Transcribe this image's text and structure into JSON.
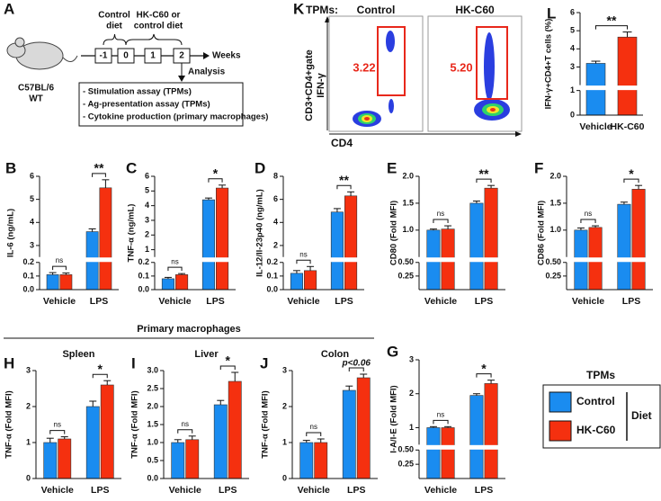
{
  "panel_a": {
    "label": "A",
    "mouse_lines": [
      "C57BL/6",
      "WT"
    ],
    "control_diet_lines": [
      "Control",
      "diet"
    ],
    "hkc60_lines": [
      "HK-C60 or",
      "control diet"
    ],
    "timepoints": [
      "-1",
      "0",
      "1",
      "2"
    ],
    "axis_label": "Weeks",
    "analysis": "Analysis",
    "assays": [
      "- Stimulation assay (TPMs)",
      "- Ag-presentation assay (TPMs)",
      "- Cytokine production (primary macrophages)"
    ]
  },
  "panel_k": {
    "label": "K",
    "row_label": "TPMs:",
    "columns": [
      "Control",
      "HK-C60"
    ],
    "gate_values": [
      "3.22",
      "5.20"
    ],
    "ylabel_lines": [
      "CD3+CD4+gate",
      "IFN-γ"
    ],
    "xlabel": "CD4"
  },
  "group_header": "Primary macrophages",
  "legend": {
    "title": "TPMs",
    "group_label": "Diet"
  },
  "chart_data": [
    {
      "type": "bar",
      "label": "B",
      "ylabel": "IL-6 (ng/mL)",
      "categories": [
        "Vehicle",
        "LPS"
      ],
      "series": [
        {
          "name": "Control",
          "color": "#1a8cf0",
          "values": [
            0.11,
            3.6
          ],
          "errors": [
            0.015,
            0.12
          ]
        },
        {
          "name": "HK-C60",
          "color": "#f5300f",
          "values": [
            0.11,
            5.5
          ],
          "errors": [
            0.012,
            0.35
          ]
        }
      ],
      "ylim": [
        0,
        6
      ],
      "axis_break": [
        0.2,
        2.5
      ],
      "yticks": [
        {
          "value": 0,
          "label": "0.0"
        },
        0.1,
        0.2,
        3,
        4,
        5,
        6
      ],
      "significance": [
        "ns",
        "**"
      ]
    },
    {
      "type": "bar",
      "label": "C",
      "ylabel": "TNF-α (ng/mL)",
      "categories": [
        "Vehicle",
        "LPS"
      ],
      "series": [
        {
          "name": "Control",
          "color": "#1a8cf0",
          "values": [
            0.08,
            4.4
          ],
          "errors": [
            0.01,
            0.12
          ]
        },
        {
          "name": "HK-C60",
          "color": "#f5300f",
          "values": [
            0.11,
            5.2
          ],
          "errors": [
            0.008,
            0.2
          ]
        }
      ],
      "ylim": [
        0,
        6
      ],
      "axis_break": [
        0.2,
        0.5
      ],
      "yticks": [
        {
          "value": 0,
          "label": "0.0"
        },
        0.1,
        0.2,
        1,
        2,
        3,
        4,
        5,
        6
      ],
      "significance": [
        "ns",
        "*"
      ]
    },
    {
      "type": "bar",
      "label": "D",
      "ylabel": "IL-12/Il-23p40 (ng/mL)",
      "categories": [
        "Vehicle",
        "LPS"
      ],
      "series": [
        {
          "name": "Control",
          "color": "#1a8cf0",
          "values": [
            0.12,
            4.9
          ],
          "errors": [
            0.02,
            0.3
          ]
        },
        {
          "name": "HK-C60",
          "color": "#f5300f",
          "values": [
            0.14,
            6.3
          ],
          "errors": [
            0.03,
            0.35
          ]
        }
      ],
      "ylim": [
        0,
        8
      ],
      "axis_break": [
        0.2,
        1
      ],
      "yticks": [
        {
          "value": 0,
          "label": "0.0"
        },
        0.1,
        0.2,
        2,
        4,
        6,
        8
      ],
      "significance": [
        "ns",
        "**"
      ]
    },
    {
      "type": "bar",
      "label": "E",
      "ylabel": "CD80 (Fold MFI)",
      "categories": [
        "Vehicle",
        "LPS"
      ],
      "series": [
        {
          "name": "Control",
          "color": "#1a8cf0",
          "values": [
            1.0,
            1.5
          ],
          "errors": [
            0.02,
            0.04
          ]
        },
        {
          "name": "HK-C60",
          "color": "#f5300f",
          "values": [
            1.02,
            1.78
          ],
          "errors": [
            0.06,
            0.05
          ]
        }
      ],
      "ylim": [
        0,
        2
      ],
      "axis_break": [
        0.5,
        0.5
      ],
      "yticks": [
        0.25,
        {
          "value": 0.5,
          "label": "0.50"
        },
        {
          "value": 1,
          "label": "1.0"
        },
        1.5,
        {
          "value": 2,
          "label": "2.0"
        }
      ],
      "significance": [
        "ns",
        "**"
      ]
    },
    {
      "type": "bar",
      "label": "F",
      "ylabel": "CD86 (Fold MFI)",
      "categories": [
        "Vehicle",
        "LPS"
      ],
      "series": [
        {
          "name": "Control",
          "color": "#1a8cf0",
          "values": [
            1.0,
            1.48
          ],
          "errors": [
            0.04,
            0.04
          ]
        },
        {
          "name": "HK-C60",
          "color": "#f5300f",
          "values": [
            1.05,
            1.76
          ],
          "errors": [
            0.03,
            0.07
          ]
        }
      ],
      "ylim": [
        0,
        2
      ],
      "axis_break": [
        0.5,
        0.5
      ],
      "yticks": [
        0.25,
        {
          "value": 0.5,
          "label": "0.50"
        },
        {
          "value": 1,
          "label": "1.0"
        },
        1.5,
        {
          "value": 2,
          "label": "2.0"
        }
      ],
      "significance": [
        "ns",
        "*"
      ]
    },
    {
      "type": "bar",
      "label": "H",
      "title": "Spleen",
      "ylabel": "TNF-α (Fold MFI)",
      "categories": [
        "Vehicle",
        "LPS"
      ],
      "series": [
        {
          "name": "Control",
          "color": "#1a8cf0",
          "values": [
            1.0,
            2.0
          ],
          "errors": [
            0.12,
            0.15
          ]
        },
        {
          "name": "HK-C60",
          "color": "#f5300f",
          "values": [
            1.1,
            2.6
          ],
          "errors": [
            0.06,
            0.12
          ]
        }
      ],
      "ylim": [
        0,
        3
      ],
      "yticks": [
        0,
        1,
        2,
        3
      ],
      "significance": [
        "ns",
        "*"
      ]
    },
    {
      "type": "bar",
      "label": "I",
      "title": "Liver",
      "ylabel": "TNF-α (Fold MFI)",
      "categories": [
        "Vehicle",
        "LPS"
      ],
      "series": [
        {
          "name": "Control",
          "color": "#1a8cf0",
          "values": [
            1.0,
            2.05
          ],
          "errors": [
            0.08,
            0.12
          ]
        },
        {
          "name": "HK-C60",
          "color": "#f5300f",
          "values": [
            1.08,
            2.7
          ],
          "errors": [
            0.1,
            0.25
          ]
        }
      ],
      "ylim": [
        0,
        3
      ],
      "yticks": [
        {
          "value": 0,
          "label": "0.0"
        },
        0.5,
        {
          "value": 1,
          "label": "1.0"
        },
        1.5,
        {
          "value": 2,
          "label": "2.0"
        },
        2.5,
        {
          "value": 3,
          "label": "3.0"
        }
      ],
      "significance": [
        "ns",
        "*"
      ]
    },
    {
      "type": "bar",
      "label": "J",
      "title": "Colon",
      "ylabel": "TNF-α (Fold MFI)",
      "categories": [
        "Vehicle",
        "LPS"
      ],
      "series": [
        {
          "name": "Control",
          "color": "#1a8cf0",
          "values": [
            1.0,
            2.45
          ],
          "errors": [
            0.06,
            0.12
          ]
        },
        {
          "name": "HK-C60",
          "color": "#f5300f",
          "values": [
            1.0,
            2.8
          ],
          "errors": [
            0.1,
            0.1
          ]
        }
      ],
      "ylim": [
        0,
        3
      ],
      "yticks": [
        0,
        1,
        2,
        3
      ],
      "significance": [
        "ns",
        "p<0.06"
      ]
    },
    {
      "type": "bar",
      "label": "G",
      "ylabel": "I-A/I-E (Fold MFI)",
      "categories": [
        "Vehicle",
        "LPS"
      ],
      "series": [
        {
          "name": "Control",
          "color": "#1a8cf0",
          "values": [
            1.0,
            1.95
          ],
          "errors": [
            0.03,
            0.05
          ]
        },
        {
          "name": "HK-C60",
          "color": "#f5300f",
          "values": [
            1.0,
            2.3
          ],
          "errors": [
            0.03,
            0.1
          ]
        }
      ],
      "ylim": [
        0,
        3
      ],
      "axis_break": [
        0.5,
        0.5
      ],
      "yticks": [
        0.25,
        {
          "value": 0.5,
          "label": "0.50"
        },
        1,
        2,
        3
      ],
      "significance": [
        "ns",
        "*"
      ]
    },
    {
      "type": "bar",
      "label": "L",
      "ylabel": "IFN-γ+CD4+T cells (%)",
      "categories": [
        "Vehicle",
        "HK-C60"
      ],
      "values": [
        3.2,
        4.65
      ],
      "errors": [
        0.12,
        0.28
      ],
      "colors": [
        "#1a8cf0",
        "#f5300f"
      ],
      "ylim": [
        0,
        6
      ],
      "axis_break": [
        1,
        2
      ],
      "yticks": [
        0,
        1,
        3,
        4,
        5,
        6
      ],
      "significance": "**"
    }
  ]
}
